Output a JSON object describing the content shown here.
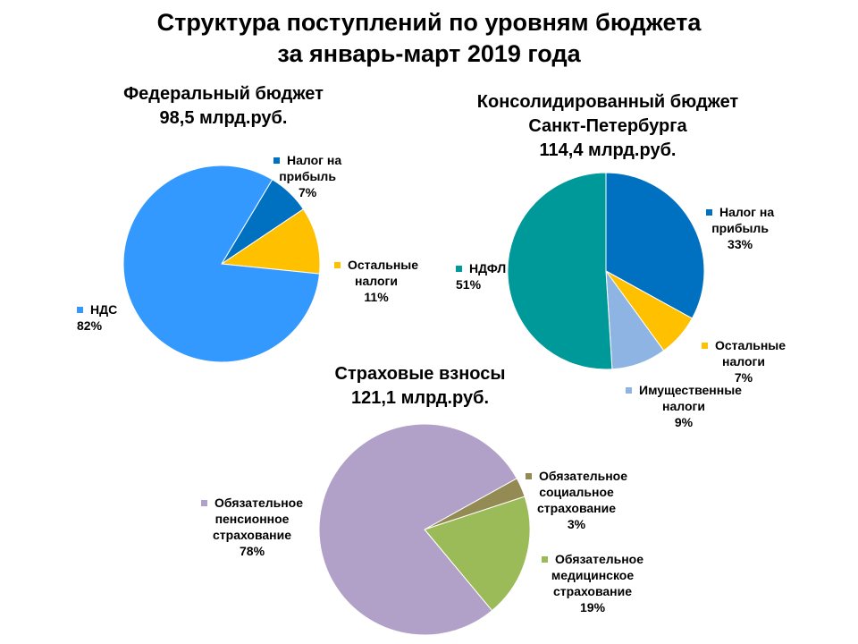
{
  "main_title": [
    "Структура поступлений по уровням бюджета",
    "за январь-март 2019 года"
  ],
  "chart_data": [
    {
      "type": "pie",
      "title": [
        "Федеральный бюджет",
        "98,5 млрд.руб."
      ],
      "slices": [
        {
          "name": [
            "Налог на",
            "прибыль"
          ],
          "value": 7,
          "label": "7%",
          "color": "#0070C0"
        },
        {
          "name": [
            "Остальные",
            "налоги"
          ],
          "value": 11,
          "label": "11%",
          "color": "#FFC000"
        },
        {
          "name": [
            "НДС"
          ],
          "value": 82,
          "label": "82%",
          "color": "#3399FF"
        }
      ]
    },
    {
      "type": "pie",
      "title": [
        "Консолидированный бюджет",
        "Санкт-Петербурга",
        "114,4 млрд.руб."
      ],
      "slices": [
        {
          "name": [
            "Налог на",
            "прибыль"
          ],
          "value": 33,
          "label": "33%",
          "color": "#0070C0"
        },
        {
          "name": [
            "Остальные",
            "налоги"
          ],
          "value": 7,
          "label": "7%",
          "color": "#FFC000"
        },
        {
          "name": [
            "Имущественные",
            "налоги"
          ],
          "value": 9,
          "label": "9%",
          "color": "#8DB4E2"
        },
        {
          "name": [
            "НДФЛ"
          ],
          "value": 51,
          "label": "51%",
          "color": "#009999"
        }
      ]
    },
    {
      "type": "pie",
      "title": [
        "Страховые взносы",
        "121,1 млрд.руб."
      ],
      "slices": [
        {
          "name": [
            "Обязательное",
            "социальное",
            "страхование"
          ],
          "value": 3,
          "label": "3%",
          "color": "#948A54"
        },
        {
          "name": [
            "Обязательное",
            "медицинское",
            "страхование"
          ],
          "value": 19,
          "label": "19%",
          "color": "#9BBB59"
        },
        {
          "name": [
            "Обязательное",
            "пенсионное",
            "страхование"
          ],
          "value": 78,
          "label": "78%",
          "color": "#B1A0C7"
        }
      ]
    }
  ]
}
